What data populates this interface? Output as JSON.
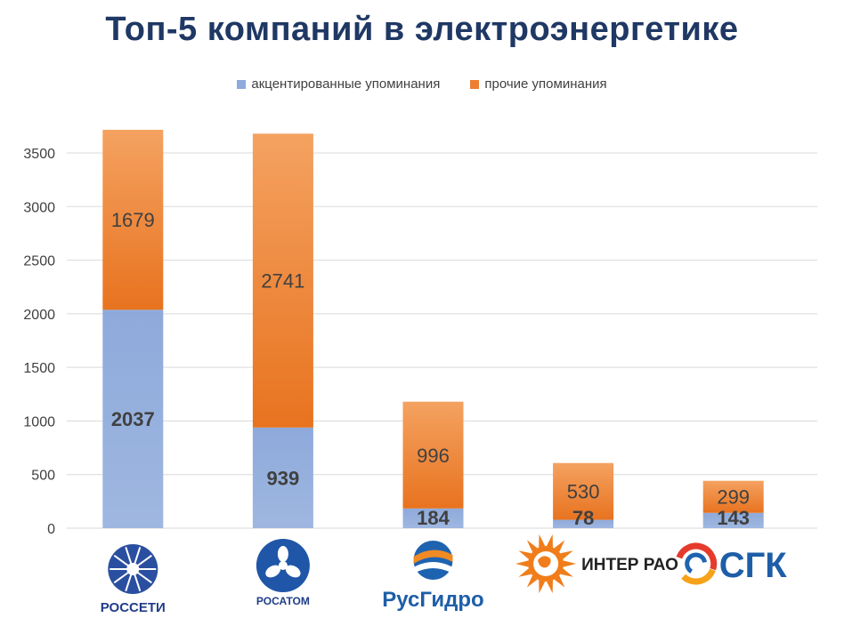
{
  "title": "Топ-5 компаний в электроэнергетике",
  "chart_data": {
    "type": "bar",
    "stacked": true,
    "categories": [
      "РОССЕТИ",
      "РОСАТОМ",
      "РусГидро",
      "ИНТЕР РАО",
      "СГК"
    ],
    "series": [
      {
        "name": "акцентированные упоминания",
        "color": "#8eaadb",
        "values": [
          2037,
          939,
          184,
          78,
          143
        ]
      },
      {
        "name": "прочие упоминания",
        "color": "#ed7d31",
        "values": [
          1679,
          2741,
          996,
          530,
          299
        ]
      }
    ],
    "ylim": [
      0,
      3500
    ],
    "yticks": [
      0,
      500,
      1000,
      1500,
      2000,
      2500,
      3000,
      3500
    ],
    "grid": true,
    "legend_position": "top",
    "xlabel": "",
    "ylabel": ""
  },
  "logos": [
    {
      "icon": "rosseti-logo-icon",
      "text": "РОССЕТИ",
      "color": "#1f3c88"
    },
    {
      "icon": "rosatom-logo-icon",
      "text": "РОСАТОМ",
      "color": "#1f3c88"
    },
    {
      "icon": "rushydro-logo-icon",
      "text": "РусГидро",
      "color": "#1e5ea8"
    },
    {
      "icon": "interrao-logo-icon",
      "text": "ИНТЕР РАО",
      "color": "#222222"
    },
    {
      "icon": "sgk-logo-icon",
      "text": "СГК",
      "color": "#1e5ea8"
    }
  ]
}
